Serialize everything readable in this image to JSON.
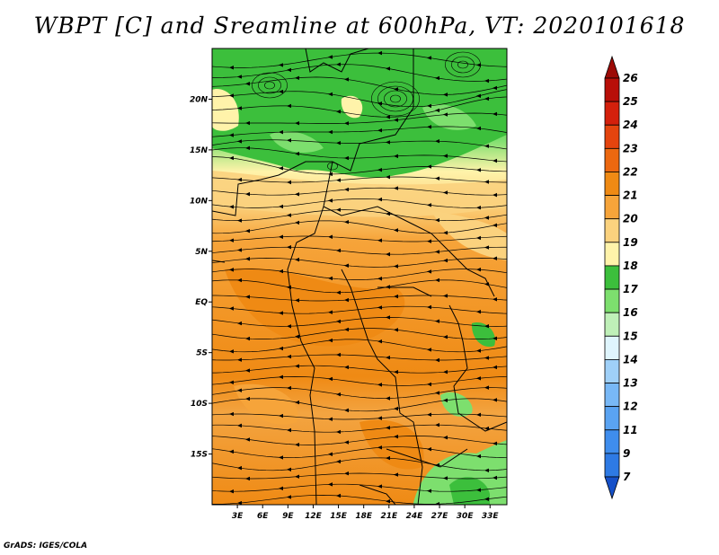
{
  "title": "WBPT [C] and Sreamline at 600hPa, VT: 2020101618",
  "credit": "GrADS: IGES/COLA",
  "map": {
    "lon_range": [
      0,
      35
    ],
    "lat_range": [
      -20,
      25
    ],
    "lon_ticks": [
      {
        "value": 3,
        "label": "3E"
      },
      {
        "value": 6,
        "label": "6E"
      },
      {
        "value": 9,
        "label": "9E"
      },
      {
        "value": 12,
        "label": "12E"
      },
      {
        "value": 15,
        "label": "15E"
      },
      {
        "value": 18,
        "label": "18E"
      },
      {
        "value": 21,
        "label": "21E"
      },
      {
        "value": 24,
        "label": "24E"
      },
      {
        "value": 27,
        "label": "27E"
      },
      {
        "value": 30,
        "label": "30E"
      },
      {
        "value": 33,
        "label": "33E"
      }
    ],
    "lat_ticks": [
      {
        "value": 20,
        "label": "20N"
      },
      {
        "value": 15,
        "label": "15N"
      },
      {
        "value": 10,
        "label": "10N"
      },
      {
        "value": 5,
        "label": "5N"
      },
      {
        "value": 0,
        "label": "EQ"
      },
      {
        "value": -5,
        "label": "5S"
      },
      {
        "value": -10,
        "label": "10S"
      },
      {
        "value": -15,
        "label": "15S"
      }
    ]
  },
  "colorbar": {
    "levels": [
      {
        "label": "7",
        "color": "#1f68dc"
      },
      {
        "label": "9",
        "color": "#2e7ae4"
      },
      {
        "label": "11",
        "color": "#3f8ded"
      },
      {
        "label": "12",
        "color": "#5aa3f2"
      },
      {
        "label": "13",
        "color": "#78b8f6"
      },
      {
        "label": "14",
        "color": "#9fd0f8"
      },
      {
        "label": "15",
        "color": "#dff5fd"
      },
      {
        "label": "16",
        "color": "#bff0b8"
      },
      {
        "label": "17",
        "color": "#7ddf6e"
      },
      {
        "label": "18",
        "color": "#3cbf3c"
      },
      {
        "label": "19",
        "color": "#fff3aa"
      },
      {
        "label": "20",
        "color": "#fbd27e"
      },
      {
        "label": "21",
        "color": "#f6a43a"
      },
      {
        "label": "22",
        "color": "#ef8a14"
      },
      {
        "label": "23",
        "color": "#ec6810"
      },
      {
        "label": "24",
        "color": "#e4440e"
      },
      {
        "label": "25",
        "color": "#d4200c"
      },
      {
        "label": "26",
        "color": "#b80f08"
      }
    ],
    "bottom_color": "#1650c8",
    "top_color": "#9c0a06"
  }
}
